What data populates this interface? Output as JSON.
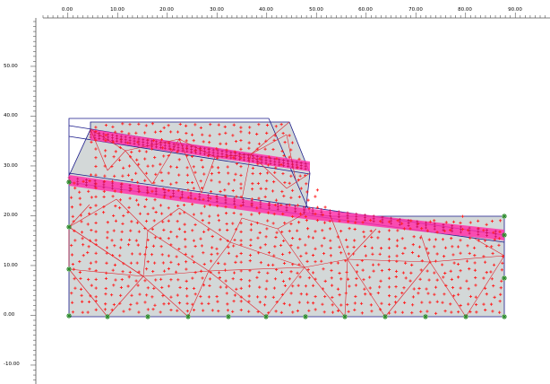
{
  "window": {
    "title": "",
    "viewport": "mesh-geometry-view"
  },
  "rulers": {
    "top": {
      "labels": [
        "0.00",
        "10.00",
        "20.00",
        "30.00",
        "40.00",
        "50.00",
        "60.00",
        "70.00",
        "80.00",
        "90.00"
      ]
    },
    "left": {
      "labels": [
        "50.00",
        "40.00",
        "30.00",
        "20.00",
        "10.00",
        "0.00",
        "-10.00"
      ]
    }
  },
  "colors": {
    "soil_fill": "#d3d8d8",
    "mesh_line": "#e0202a",
    "node": "#ff2020",
    "band": "#ff33aa",
    "outline": "#1a1a8a",
    "fixity": "#2a8a2a"
  },
  "icons": {
    "node": "red-plus-node-icon",
    "fixity": "green-fixity-icon"
  }
}
